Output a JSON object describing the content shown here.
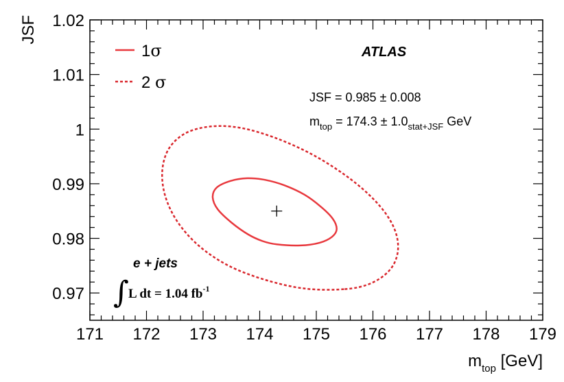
{
  "chart_data": {
    "type": "contour",
    "xlabel": "m_top [GeV]",
    "xlabel_main": "m",
    "xlabel_sub": "top",
    "xlabel_unit": " [GeV]",
    "ylabel": "JSF",
    "xlim": [
      171,
      179
    ],
    "ylim": [
      0.965,
      1.02
    ],
    "x_ticks": [
      171,
      172,
      173,
      174,
      175,
      176,
      177,
      178,
      179
    ],
    "x_tick_labels": [
      "171",
      "172",
      "173",
      "174",
      "175",
      "176",
      "177",
      "178",
      "179"
    ],
    "y_ticks": [
      0.97,
      0.98,
      0.99,
      1.0,
      1.01,
      1.02
    ],
    "y_tick_labels": [
      "0.97",
      "0.98",
      "0.99",
      "1",
      "1.01",
      "1.02"
    ],
    "best_fit": {
      "x": 174.3,
      "y": 0.985
    },
    "series": [
      {
        "name": "1σ",
        "style": "solid",
        "color": "#e8383d",
        "points": [
          [
            174.3,
            0.9789
          ],
          [
            174.72,
            0.9787
          ],
          [
            175.06,
            0.9792
          ],
          [
            175.28,
            0.9803
          ],
          [
            175.36,
            0.9817
          ],
          [
            175.29,
            0.9836
          ],
          [
            175.08,
            0.9858
          ],
          [
            174.79,
            0.988
          ],
          [
            174.44,
            0.9897
          ],
          [
            174.1,
            0.9907
          ],
          [
            173.78,
            0.991
          ],
          [
            173.48,
            0.9905
          ],
          [
            173.24,
            0.9893
          ],
          [
            173.17,
            0.9875
          ],
          [
            173.26,
            0.9853
          ],
          [
            173.5,
            0.9829
          ],
          [
            173.8,
            0.9807
          ],
          [
            174.05,
            0.9795
          ],
          [
            174.3,
            0.9789
          ]
        ]
      },
      {
        "name": "2 σ",
        "style": "dashed",
        "color": "#d9262c",
        "points": [
          [
            175.5,
            0.9707
          ],
          [
            175.95,
            0.9717
          ],
          [
            176.28,
            0.974
          ],
          [
            176.43,
            0.977
          ],
          [
            176.42,
            0.9805
          ],
          [
            176.25,
            0.9842
          ],
          [
            175.93,
            0.988
          ],
          [
            175.48,
            0.9918
          ],
          [
            174.92,
            0.9954
          ],
          [
            174.3,
            0.9983
          ],
          [
            173.68,
            1.0002
          ],
          [
            173.15,
            1.0005
          ],
          [
            172.7,
            0.9993
          ],
          [
            172.4,
            0.9965
          ],
          [
            172.28,
            0.9925
          ],
          [
            172.33,
            0.9878
          ],
          [
            172.55,
            0.983
          ],
          [
            172.93,
            0.9786
          ],
          [
            173.45,
            0.975
          ],
          [
            174.1,
            0.9724
          ],
          [
            174.8,
            0.9708
          ],
          [
            175.5,
            0.9707
          ]
        ]
      }
    ],
    "legend": {
      "placement": "top-left",
      "entries": [
        {
          "main": "1",
          "greek": "σ",
          "style": "solid"
        },
        {
          "main": "2 ",
          "greek": "σ",
          "style": "dashed"
        }
      ]
    },
    "annotations": {
      "experiment": "ATLAS",
      "jsf_result": "JSF = 0.985 ± 0.008",
      "mtop_main": "m",
      "mtop_sub": "top",
      "mtop_value": " = 174.3 ± 1.0",
      "mtop_sub2": "stat+JSF",
      "mtop_unit": " GeV",
      "channel": "e + jets",
      "lumi_integral": "∫",
      "lumi_text": "L dt = 1.04 fb",
      "lumi_sup": "-1"
    }
  }
}
